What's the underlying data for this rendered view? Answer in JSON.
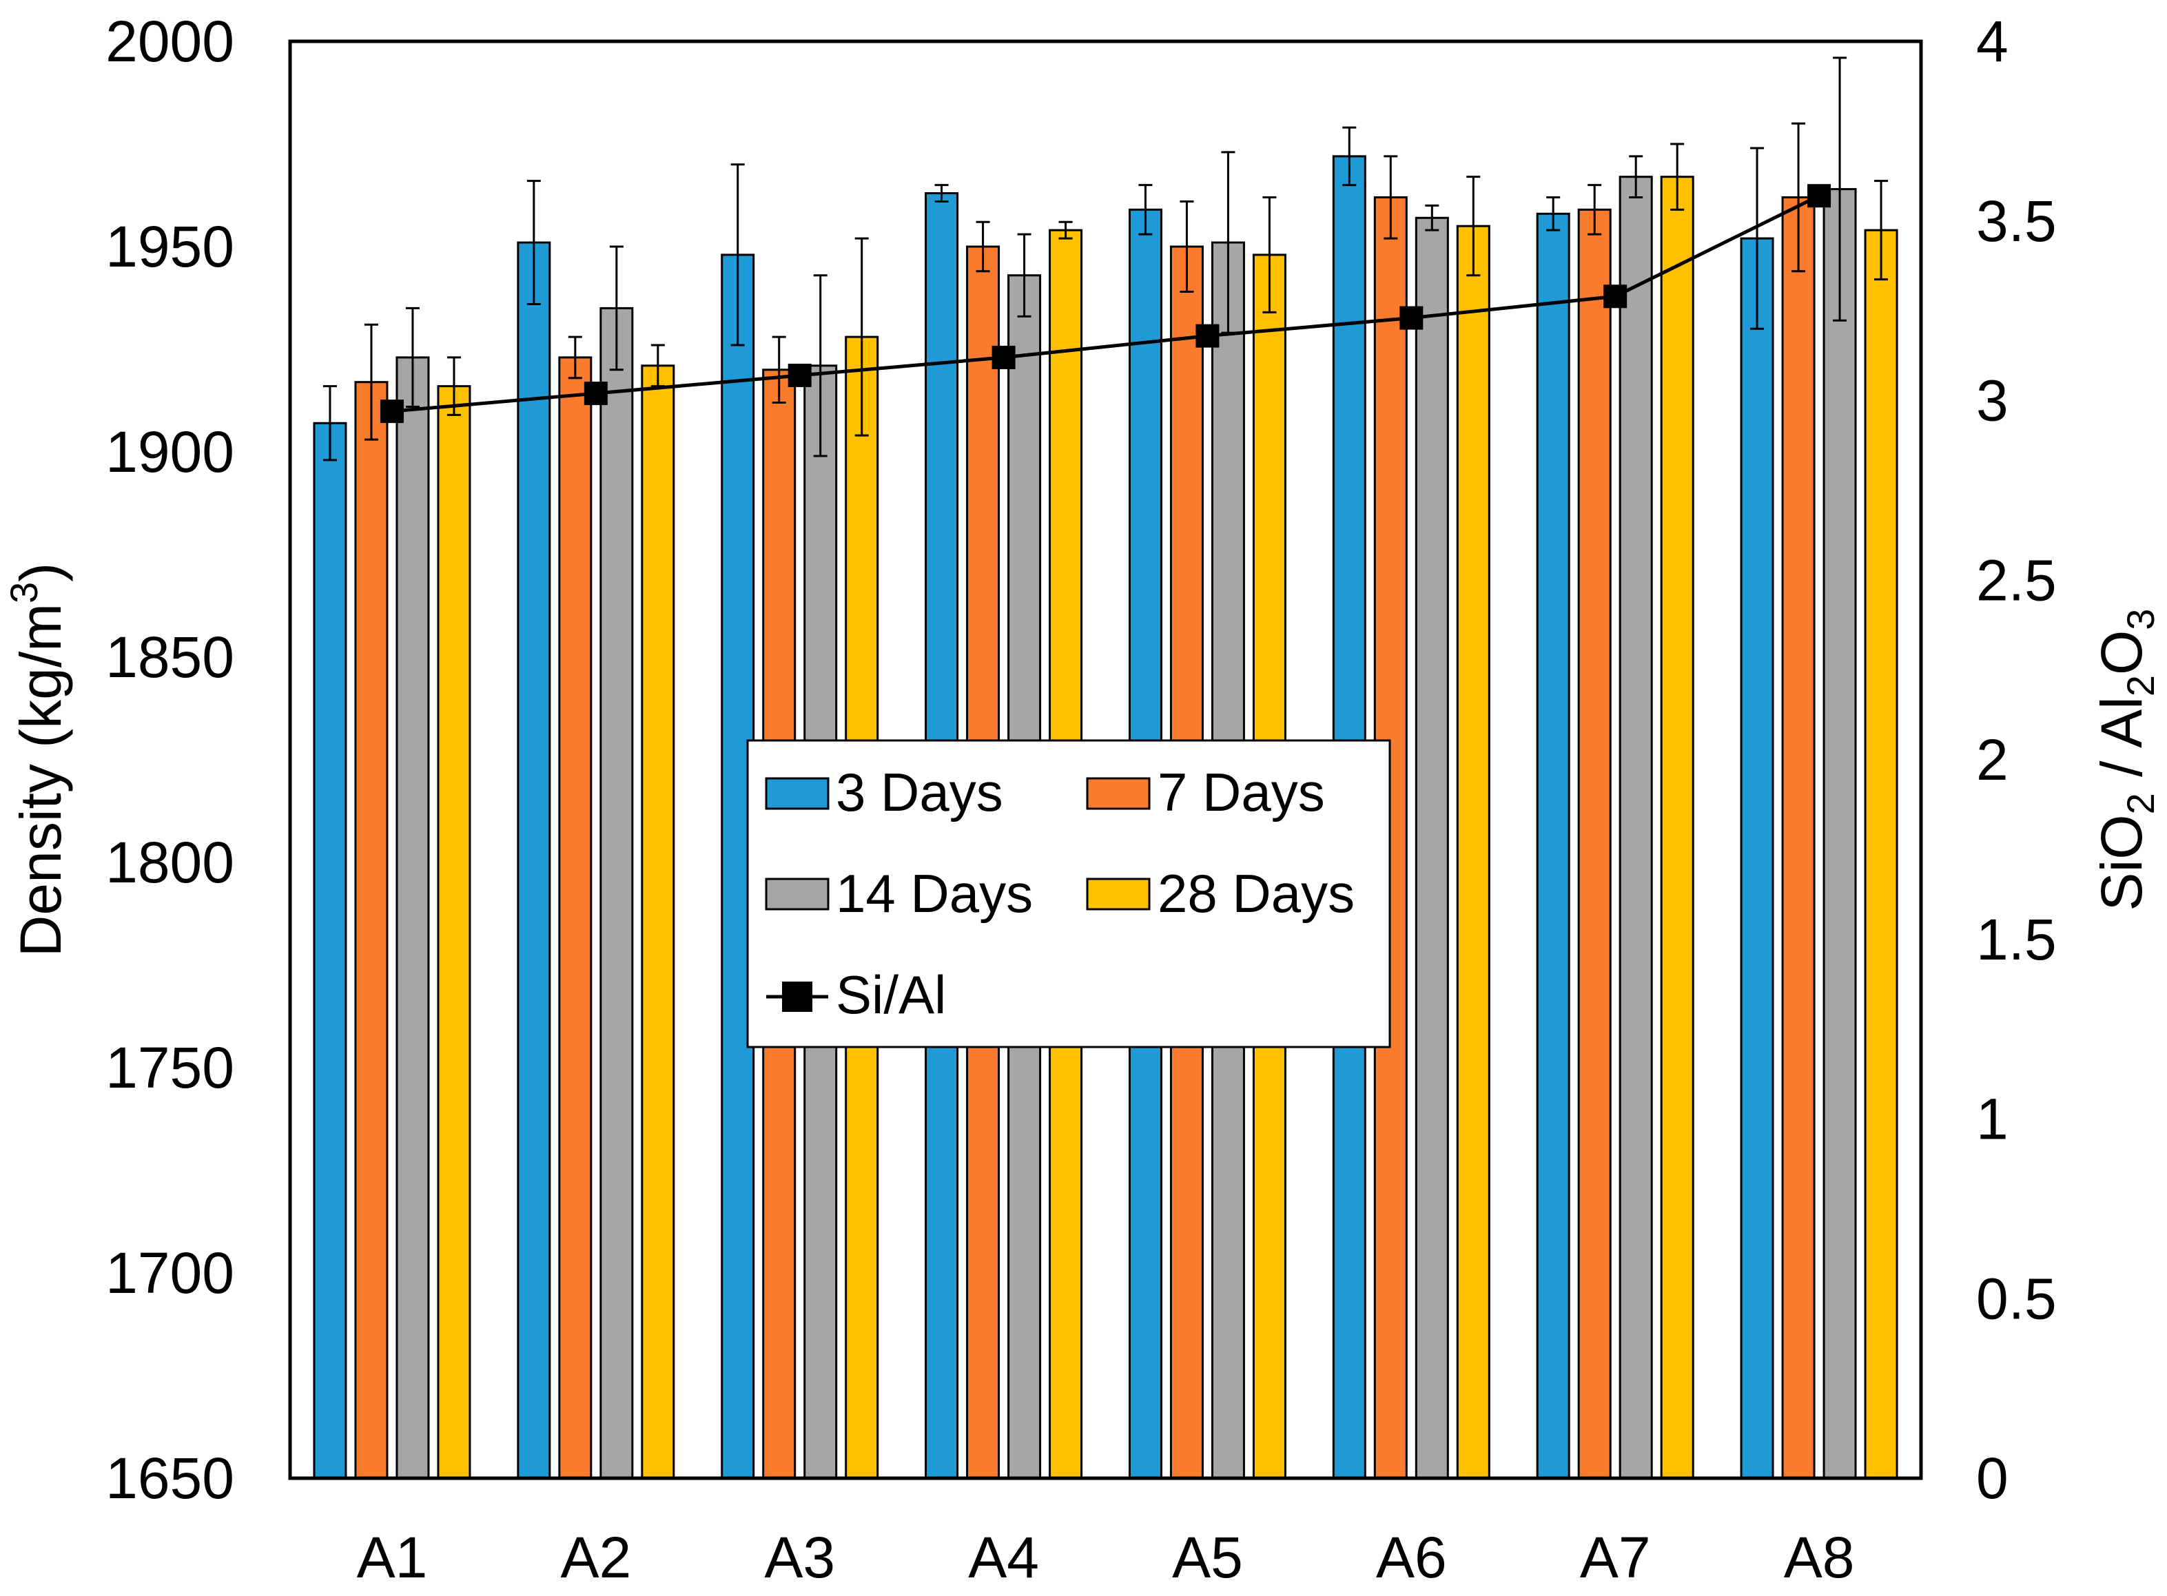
{
  "chart_data": {
    "type": "bar",
    "categories": [
      "A1",
      "A2",
      "A3",
      "A4",
      "A5",
      "A6",
      "A7",
      "A8"
    ],
    "series": [
      {
        "name": "3 Days",
        "color": "#1f9ad6",
        "values": [
          1907,
          1951,
          1948,
          1963,
          1959,
          1972,
          1958,
          1952
        ],
        "errors": [
          9,
          15,
          22,
          2,
          6,
          7,
          4,
          22
        ]
      },
      {
        "name": "7 Days",
        "color": "#f97b2d",
        "values": [
          1917,
          1923,
          1920,
          1950,
          1950,
          1962,
          1959,
          1962
        ],
        "errors": [
          14,
          5,
          8,
          6,
          11,
          10,
          6,
          18
        ]
      },
      {
        "name": "14 Days",
        "color": "#a6a6a6",
        "values": [
          1923,
          1935,
          1921,
          1943,
          1951,
          1957,
          1967,
          1964
        ],
        "errors": [
          12,
          15,
          22,
          10,
          22,
          3,
          5,
          32
        ]
      },
      {
        "name": "28 Days",
        "color": "#ffc000",
        "values": [
          1916,
          1921,
          1928,
          1954,
          1948,
          1955,
          1967,
          1954
        ],
        "errors": [
          7,
          5,
          24,
          2,
          14,
          12,
          8,
          12
        ]
      }
    ],
    "line_series": {
      "name": "Si/Al",
      "color": "#000000",
      "values": [
        2.97,
        3.02,
        3.07,
        3.12,
        3.18,
        3.23,
        3.29,
        3.57
      ]
    },
    "y_ticks": [
      "1650",
      "1700",
      "1750",
      "1800",
      "1850",
      "1900",
      "1950",
      "2000"
    ],
    "y2_ticks": [
      "0",
      "0.5",
      "1",
      "1.5",
      "2",
      "2.5",
      "3",
      "3.5",
      "4"
    ],
    "ylim": [
      1650,
      2000
    ],
    "y2lim": [
      0,
      4
    ],
    "ylabel": "Density (kg/m",
    "ylabel_sup": "3",
    "ylabel_end": ")",
    "y2label_parts": {
      "a": "SiO",
      "a_sub": "2",
      "b": " / Al",
      "b_sub": "2",
      "c": "O",
      "c_sub": "3"
    },
    "legend_position": "center"
  }
}
